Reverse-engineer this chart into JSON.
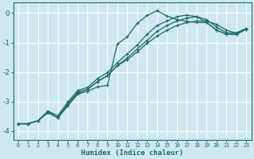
{
  "xlabel": "Humidex (Indice chaleur)",
  "ylabel": "",
  "background_color": "#cfe8f0",
  "line_color": "#1a6b6b",
  "grid_color": "#ffffff",
  "xlim": [
    -0.5,
    23.5
  ],
  "ylim": [
    -4.3,
    0.35
  ],
  "xticks": [
    0,
    1,
    2,
    3,
    4,
    5,
    6,
    7,
    8,
    9,
    10,
    11,
    12,
    13,
    14,
    15,
    16,
    17,
    18,
    19,
    20,
    21,
    22,
    23
  ],
  "yticks": [
    0,
    -1,
    -2,
    -3,
    -4
  ],
  "lines": [
    {
      "x": [
        0,
        1,
        2,
        3,
        4,
        5,
        6,
        7,
        8,
        9,
        10,
        11,
        12,
        13,
        14,
        15,
        16,
        17,
        18,
        19,
        20,
        21,
        22,
        23
      ],
      "y": [
        -3.75,
        -3.75,
        -3.65,
        -3.35,
        -3.55,
        -3.15,
        -2.75,
        -2.65,
        -2.5,
        -2.45,
        -1.05,
        -0.8,
        -0.35,
        -0.08,
        0.08,
        -0.1,
        -0.22,
        -0.28,
        -0.32,
        -0.32,
        -0.58,
        -0.72,
        -0.72,
        -0.55
      ]
    },
    {
      "x": [
        0,
        1,
        2,
        3,
        4,
        5,
        6,
        7,
        8,
        9,
        10,
        11,
        12,
        13,
        14,
        15,
        16,
        17,
        18,
        19,
        20,
        21,
        22,
        23
      ],
      "y": [
        -3.75,
        -3.75,
        -3.65,
        -3.35,
        -3.55,
        -3.08,
        -2.68,
        -2.58,
        -2.32,
        -2.12,
        -1.78,
        -1.58,
        -1.32,
        -1.02,
        -0.78,
        -0.58,
        -0.42,
        -0.32,
        -0.27,
        -0.27,
        -0.38,
        -0.58,
        -0.68,
        -0.55
      ]
    },
    {
      "x": [
        0,
        1,
        2,
        3,
        4,
        5,
        6,
        7,
        8,
        9,
        10,
        11,
        12,
        13,
        14,
        15,
        16,
        17,
        18,
        19,
        20,
        21,
        22,
        23
      ],
      "y": [
        -3.75,
        -3.75,
        -3.65,
        -3.38,
        -3.55,
        -3.08,
        -2.72,
        -2.58,
        -2.32,
        -2.12,
        -1.78,
        -1.52,
        -1.22,
        -0.92,
        -0.62,
        -0.42,
        -0.27,
        -0.17,
        -0.12,
        -0.22,
        -0.47,
        -0.67,
        -0.67,
        -0.52
      ]
    },
    {
      "x": [
        0,
        1,
        2,
        3,
        4,
        5,
        6,
        7,
        8,
        9,
        10,
        11,
        12,
        13,
        14,
        15,
        16,
        17,
        18,
        19,
        20,
        21,
        22,
        23
      ],
      "y": [
        -3.75,
        -3.75,
        -3.65,
        -3.32,
        -3.48,
        -3.02,
        -2.62,
        -2.52,
        -2.22,
        -2.02,
        -1.68,
        -1.38,
        -1.08,
        -0.72,
        -0.42,
        -0.27,
        -0.12,
        -0.07,
        -0.12,
        -0.32,
        -0.57,
        -0.72,
        -0.72,
        -0.52
      ]
    }
  ]
}
